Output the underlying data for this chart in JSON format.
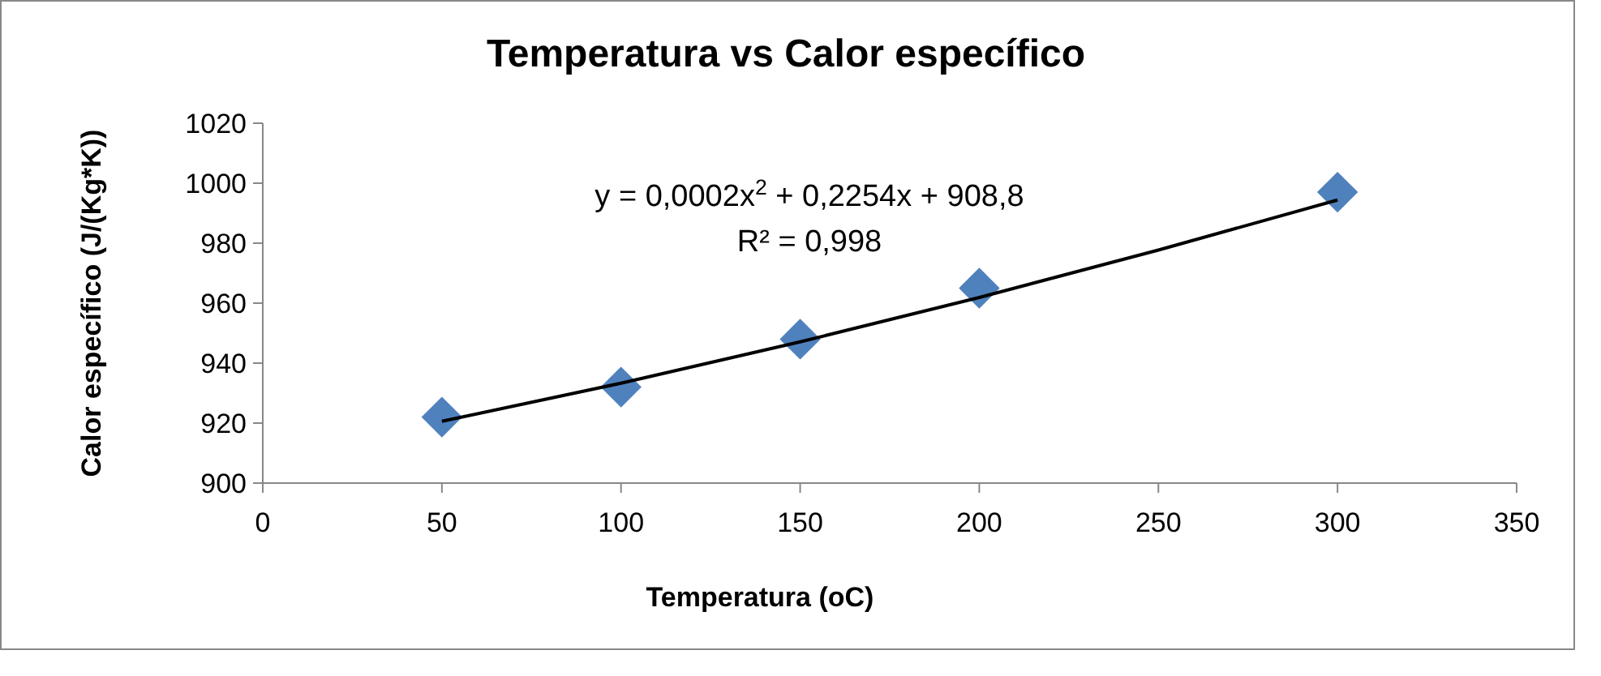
{
  "chart_data": {
    "type": "scatter",
    "title": "Temperatura vs Calor específico",
    "xlabel": "Temperatura (oC)",
    "ylabel": "Calor específico (J/(Kg*K))",
    "xlim": [
      0,
      350
    ],
    "xticks": [
      0,
      50,
      100,
      150,
      200,
      250,
      300,
      350
    ],
    "ylim": [
      900,
      1020
    ],
    "yticks": [
      900,
      920,
      940,
      960,
      980,
      1000,
      1020
    ],
    "marker": "diamond",
    "series": [
      {
        "color": "#4f81bd",
        "x": [
          50,
          100,
          150,
          200,
          300
        ],
        "values": [
          922,
          932,
          948,
          965,
          997
        ]
      },
      {
        "type": "line",
        "color": "#000000",
        "marker": "none",
        "line_style": "solid",
        "x": [
          50,
          100,
          150,
          200,
          250,
          300
        ],
        "values": [
          920.6,
          933.3,
          947.1,
          961.9,
          977.7,
          994.4
        ]
      }
    ],
    "annotations": [
      "y = 0,0002x$^{2}$ + 0,2254x + 908,8",
      "R² = 0,998"
    ]
  }
}
